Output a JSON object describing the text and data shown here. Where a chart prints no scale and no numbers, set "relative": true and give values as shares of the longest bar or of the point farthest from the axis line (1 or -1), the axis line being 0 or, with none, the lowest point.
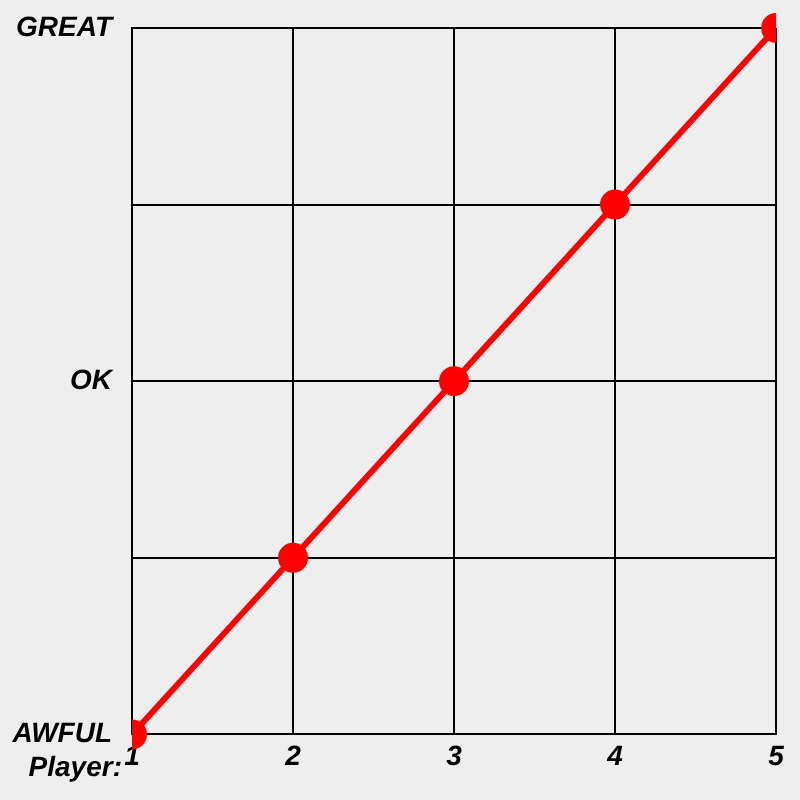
{
  "chart_data": {
    "type": "line",
    "xlabel": "Player:",
    "relative": true,
    "x": [
      1,
      2,
      3,
      4,
      5
    ],
    "series": [
      {
        "color": "#ff0000",
        "values": [
          0,
          0.25,
          0.5,
          0.75,
          1
        ]
      }
    ],
    "xlim": [
      1,
      5
    ],
    "xticks": [
      1,
      2,
      3,
      4,
      5
    ],
    "annotations": [
      "GREAT",
      "OK",
      "AWFUL"
    ],
    "grid": true,
    "marker": "circle",
    "line_style": "solid"
  }
}
